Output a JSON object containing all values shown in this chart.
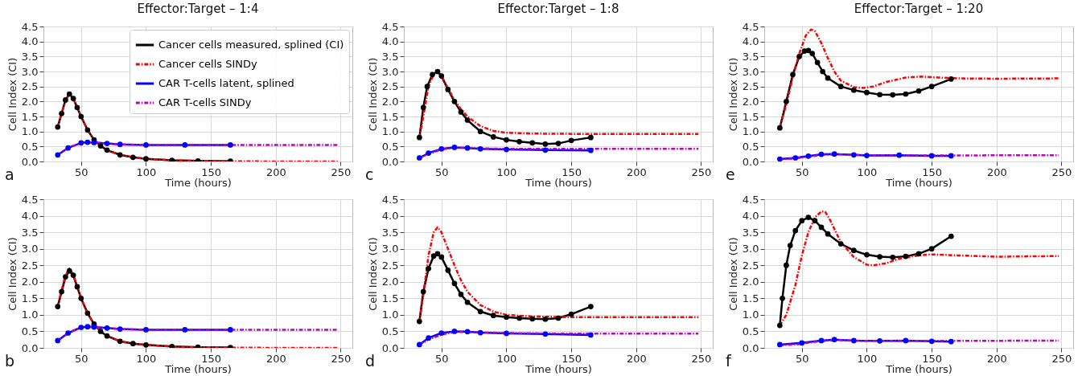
{
  "chart_data": [
    {
      "type": "line",
      "title": "Effector:Target – 1:4",
      "xlabel": "Time (hours)",
      "ylabel": "Cell Index (CI)",
      "annotations": [
        "a"
      ],
      "xlim": [
        21,
        259
      ],
      "ylim": [
        0,
        4.5
      ],
      "xticks": [
        50,
        100,
        150,
        200,
        250
      ],
      "yticks": [
        {
          "value": 0,
          "label": "0.0"
        },
        0.5,
        {
          "value": 1,
          "label": "1.0"
        },
        1.5,
        {
          "value": 2,
          "label": "2.0"
        },
        2.5,
        {
          "value": 3,
          "label": "3.0"
        },
        3.5,
        {
          "value": 4,
          "label": "4.0"
        },
        4.5
      ],
      "grid": true,
      "legend": "top right",
      "series": [
        {
          "name": "Cancer cells measured, splined (CI)",
          "color": "#000000",
          "line_style": "solid",
          "marker": "circle",
          "x": [
            32,
            35,
            38,
            41,
            44,
            47,
            50,
            55,
            60,
            65,
            70,
            80,
            90,
            100,
            120,
            140,
            165
          ],
          "values": [
            1.15,
            1.6,
            2.05,
            2.25,
            2.1,
            1.8,
            1.5,
            1.05,
            0.72,
            0.52,
            0.38,
            0.22,
            0.14,
            0.09,
            0.04,
            0.02,
            0.01
          ]
        },
        {
          "name": "Cancer cells SINDy",
          "color": "#ff0000",
          "line_style": "dashed",
          "x": [
            32,
            35,
            38,
            41,
            44,
            47,
            50,
            55,
            60,
            65,
            70,
            80,
            90,
            100,
            120,
            140,
            165,
            200,
            248
          ],
          "values": [
            1.15,
            1.6,
            2.05,
            2.25,
            2.1,
            1.8,
            1.5,
            1.05,
            0.72,
            0.52,
            0.38,
            0.22,
            0.14,
            0.09,
            0.04,
            0.02,
            0.01,
            0,
            0
          ]
        },
        {
          "name": "CAR T-cells latent, splined",
          "color": "#0000ff",
          "line_style": "solid",
          "marker": "circle",
          "x": [
            32,
            40,
            50,
            55,
            60,
            70,
            80,
            100,
            130,
            165
          ],
          "values": [
            0.22,
            0.45,
            0.62,
            0.64,
            0.63,
            0.6,
            0.57,
            0.55,
            0.55,
            0.55
          ]
        },
        {
          "name": "CAR T-cells SINDy",
          "color": "#bf00bf",
          "line_style": "dashed",
          "x": [
            32,
            40,
            50,
            55,
            60,
            70,
            80,
            100,
            130,
            165,
            200,
            248
          ],
          "values": [
            0.22,
            0.45,
            0.62,
            0.64,
            0.63,
            0.6,
            0.57,
            0.55,
            0.55,
            0.55,
            0.55,
            0.55
          ]
        }
      ]
    },
    {
      "type": "line",
      "title": "Effector:Target – 1:8",
      "xlabel": "Time (hours)",
      "ylabel": "Cell Index (CI)",
      "annotations": [
        "c"
      ],
      "xlim": [
        21,
        259
      ],
      "ylim": [
        0,
        4.5
      ],
      "xticks": [
        50,
        100,
        150,
        200,
        250
      ],
      "yticks": [
        {
          "value": 0,
          "label": "0.0"
        },
        0.5,
        {
          "value": 1,
          "label": "1.0"
        },
        1.5,
        {
          "value": 2,
          "label": "2.0"
        },
        2.5,
        {
          "value": 3,
          "label": "3.0"
        },
        3.5,
        {
          "value": 4,
          "label": "4.0"
        },
        4.5
      ],
      "grid": true,
      "series": [
        {
          "color": "#000000",
          "line_style": "solid",
          "marker": "circle",
          "x": [
            33,
            36,
            39,
            43,
            47,
            50,
            55,
            60,
            65,
            70,
            80,
            90,
            100,
            110,
            120,
            130,
            140,
            150,
            165
          ],
          "values": [
            0.8,
            1.8,
            2.5,
            2.9,
            3.0,
            2.85,
            2.4,
            2.0,
            1.65,
            1.38,
            1.0,
            0.82,
            0.72,
            0.66,
            0.62,
            0.58,
            0.6,
            0.7,
            0.8
          ]
        },
        {
          "color": "#ff0000",
          "line_style": "dashed",
          "x": [
            33,
            36,
            40,
            44,
            47,
            50,
            55,
            60,
            65,
            70,
            80,
            90,
            100,
            120,
            150,
            200,
            248
          ],
          "values": [
            0.8,
            1.5,
            2.5,
            2.9,
            2.97,
            2.85,
            2.45,
            2.05,
            1.75,
            1.5,
            1.18,
            1.02,
            0.96,
            0.93,
            0.92,
            0.92,
            0.92
          ]
        },
        {
          "color": "#0000ff",
          "line_style": "solid",
          "marker": "circle",
          "x": [
            33,
            40,
            50,
            60,
            70,
            80,
            100,
            130,
            165
          ],
          "values": [
            0.12,
            0.28,
            0.42,
            0.47,
            0.45,
            0.42,
            0.4,
            0.38,
            0.37
          ]
        },
        {
          "color": "#bf00bf",
          "line_style": "dashed",
          "x": [
            33,
            40,
            50,
            60,
            70,
            100,
            150,
            248
          ],
          "values": [
            0.12,
            0.25,
            0.4,
            0.46,
            0.45,
            0.42,
            0.42,
            0.42
          ]
        }
      ]
    },
    {
      "type": "line",
      "title": "Effector:Target – 1:20",
      "xlabel": "Time (hours)",
      "ylabel": "Cell Index (CI)",
      "annotations": [
        "e"
      ],
      "xlim": [
        21,
        259
      ],
      "ylim": [
        0,
        4.5
      ],
      "xticks": [
        50,
        100,
        150,
        200,
        250
      ],
      "yticks": [
        {
          "value": 0,
          "label": "0.0"
        },
        0.5,
        {
          "value": 1,
          "label": "1.0"
        },
        1.5,
        {
          "value": 2,
          "label": "2.0"
        },
        2.5,
        {
          "value": 3,
          "label": "3.0"
        },
        3.5,
        {
          "value": 4,
          "label": "4.0"
        },
        4.5
      ],
      "grid": true,
      "series": [
        {
          "color": "#000000",
          "line_style": "solid",
          "marker": "circle",
          "x": [
            33,
            38,
            43,
            48,
            52,
            55,
            58,
            62,
            66,
            70,
            80,
            90,
            100,
            110,
            120,
            130,
            140,
            150,
            165
          ],
          "values": [
            1.12,
            2.0,
            2.9,
            3.5,
            3.68,
            3.7,
            3.6,
            3.3,
            3.0,
            2.78,
            2.5,
            2.38,
            2.3,
            2.23,
            2.22,
            2.25,
            2.35,
            2.5,
            2.75
          ]
        },
        {
          "color": "#ff0000",
          "line_style": "dashed",
          "x": [
            33,
            38,
            43,
            48,
            53,
            57,
            60,
            65,
            70,
            75,
            80,
            90,
            97,
            105,
            115,
            130,
            142,
            155,
            170,
            200,
            248
          ],
          "values": [
            1.15,
            1.9,
            2.8,
            3.6,
            4.2,
            4.4,
            4.35,
            3.95,
            3.45,
            3.0,
            2.7,
            2.48,
            2.45,
            2.5,
            2.65,
            2.8,
            2.83,
            2.8,
            2.77,
            2.76,
            2.77
          ]
        },
        {
          "color": "#0000ff",
          "line_style": "solid",
          "marker": "circle",
          "x": [
            33,
            45,
            55,
            65,
            75,
            90,
            100,
            125,
            150,
            165
          ],
          "values": [
            0.08,
            0.12,
            0.18,
            0.24,
            0.25,
            0.22,
            0.2,
            0.21,
            0.19,
            0.19
          ]
        },
        {
          "color": "#bf00bf",
          "line_style": "dashed",
          "x": [
            33,
            45,
            55,
            65,
            75,
            90,
            110,
            150,
            248
          ],
          "values": [
            0.07,
            0.1,
            0.16,
            0.22,
            0.24,
            0.22,
            0.2,
            0.2,
            0.21
          ]
        }
      ]
    },
    {
      "type": "line",
      "xlabel": "Time (hours)",
      "ylabel": "Cell Index (CI)",
      "annotations": [
        "b"
      ],
      "xlim": [
        21,
        259
      ],
      "ylim": [
        0,
        4.5
      ],
      "xticks": [
        50,
        100,
        150,
        200,
        250
      ],
      "yticks": [
        {
          "value": 0,
          "label": "0.0"
        },
        0.5,
        {
          "value": 1,
          "label": "1.0"
        },
        1.5,
        {
          "value": 2,
          "label": "2.0"
        },
        2.5,
        {
          "value": 3,
          "label": "3.0"
        },
        3.5,
        {
          "value": 4,
          "label": "4.0"
        },
        4.5
      ],
      "grid": true,
      "series": [
        {
          "color": "#000000",
          "line_style": "solid",
          "marker": "circle",
          "x": [
            32,
            35,
            38,
            41,
            44,
            47,
            50,
            55,
            60,
            65,
            70,
            80,
            90,
            100,
            120,
            140,
            165
          ],
          "values": [
            1.25,
            1.7,
            2.15,
            2.33,
            2.2,
            1.85,
            1.5,
            1.05,
            0.72,
            0.5,
            0.36,
            0.2,
            0.13,
            0.09,
            0.04,
            0.02,
            0.01
          ]
        },
        {
          "color": "#ff0000",
          "line_style": "dashed",
          "x": [
            32,
            35,
            38,
            41,
            44,
            47,
            50,
            55,
            60,
            65,
            70,
            80,
            90,
            100,
            120,
            140,
            165,
            200,
            248
          ],
          "values": [
            1.25,
            1.75,
            2.2,
            2.4,
            2.22,
            1.85,
            1.5,
            1.05,
            0.72,
            0.5,
            0.36,
            0.2,
            0.13,
            0.09,
            0.04,
            0.02,
            0.01,
            0,
            0
          ]
        },
        {
          "color": "#0000ff",
          "line_style": "solid",
          "marker": "circle",
          "x": [
            32,
            40,
            50,
            55,
            60,
            70,
            80,
            100,
            130,
            165
          ],
          "values": [
            0.22,
            0.45,
            0.62,
            0.64,
            0.63,
            0.6,
            0.57,
            0.55,
            0.55,
            0.55
          ]
        },
        {
          "color": "#bf00bf",
          "line_style": "dashed",
          "x": [
            32,
            40,
            50,
            55,
            60,
            70,
            80,
            100,
            130,
            165,
            200,
            248
          ],
          "values": [
            0.22,
            0.45,
            0.62,
            0.64,
            0.63,
            0.6,
            0.57,
            0.55,
            0.55,
            0.55,
            0.55,
            0.55
          ]
        }
      ]
    },
    {
      "type": "line",
      "xlabel": "Time (hours)",
      "ylabel": "Cell Index (CI)",
      "annotations": [
        "d"
      ],
      "xlim": [
        21,
        259
      ],
      "ylim": [
        0,
        4.5
      ],
      "xticks": [
        50,
        100,
        150,
        200,
        250
      ],
      "yticks": [
        {
          "value": 0,
          "label": "0.0"
        },
        0.5,
        {
          "value": 1,
          "label": "1.0"
        },
        1.5,
        {
          "value": 2,
          "label": "2.0"
        },
        2.5,
        {
          "value": 3,
          "label": "3.0"
        },
        3.5,
        {
          "value": 4,
          "label": "4.0"
        },
        4.5
      ],
      "grid": true,
      "series": [
        {
          "color": "#000000",
          "line_style": "solid",
          "marker": "circle",
          "x": [
            33,
            36,
            40,
            44,
            47,
            50,
            55,
            60,
            65,
            70,
            80,
            90,
            100,
            110,
            120,
            130,
            140,
            150,
            165
          ],
          "values": [
            0.8,
            1.7,
            2.4,
            2.78,
            2.85,
            2.75,
            2.35,
            1.95,
            1.62,
            1.38,
            1.1,
            0.98,
            0.93,
            0.9,
            0.88,
            0.87,
            0.9,
            1.02,
            1.25
          ]
        },
        {
          "color": "#ff0000",
          "line_style": "dashed",
          "x": [
            33,
            36,
            40,
            44,
            47,
            50,
            55,
            60,
            65,
            70,
            80,
            90,
            100,
            120,
            150,
            200,
            248
          ],
          "values": [
            0.8,
            1.6,
            2.8,
            3.5,
            3.65,
            3.5,
            3.0,
            2.5,
            2.05,
            1.7,
            1.3,
            1.1,
            1.0,
            0.95,
            0.93,
            0.93,
            0.93
          ]
        },
        {
          "color": "#0000ff",
          "line_style": "solid",
          "marker": "circle",
          "x": [
            33,
            40,
            50,
            60,
            70,
            80,
            100,
            130,
            165
          ],
          "values": [
            0.1,
            0.3,
            0.45,
            0.5,
            0.49,
            0.46,
            0.44,
            0.42,
            0.39
          ]
        },
        {
          "color": "#bf00bf",
          "line_style": "dashed",
          "x": [
            33,
            40,
            50,
            60,
            70,
            100,
            150,
            248
          ],
          "values": [
            0.1,
            0.25,
            0.4,
            0.48,
            0.48,
            0.45,
            0.43,
            0.43
          ]
        }
      ]
    },
    {
      "type": "line",
      "xlabel": "Time (hours)",
      "ylabel": "Cell Index (CI)",
      "annotations": [
        "f"
      ],
      "xlim": [
        21,
        259
      ],
      "ylim": [
        0,
        4.5
      ],
      "xticks": [
        50,
        100,
        150,
        200,
        250
      ],
      "yticks": [
        {
          "value": 0,
          "label": "0.0"
        },
        0.5,
        {
          "value": 1,
          "label": "1.0"
        },
        1.5,
        {
          "value": 2,
          "label": "2.0"
        },
        2.5,
        {
          "value": 3,
          "label": "3.0"
        },
        3.5,
        {
          "value": 4,
          "label": "4.0"
        },
        4.5
      ],
      "grid": true,
      "series": [
        {
          "color": "#000000",
          "line_style": "solid",
          "marker": "circle",
          "x": [
            33,
            35,
            38,
            41,
            45,
            50,
            55,
            60,
            65,
            70,
            80,
            90,
            100,
            110,
            120,
            130,
            140,
            150,
            165
          ],
          "values": [
            0.68,
            1.5,
            2.5,
            3.1,
            3.55,
            3.85,
            3.95,
            3.85,
            3.65,
            3.45,
            3.15,
            2.95,
            2.82,
            2.76,
            2.74,
            2.77,
            2.85,
            3.0,
            3.38
          ]
        },
        {
          "color": "#ff0000",
          "line_style": "dashed",
          "x": [
            33,
            38,
            45,
            50,
            55,
            60,
            65,
            68,
            72,
            80,
            90,
            100,
            105,
            115,
            125,
            140,
            150,
            170,
            200,
            248
          ],
          "values": [
            0.68,
            1.0,
            1.9,
            2.8,
            3.5,
            3.95,
            4.13,
            4.12,
            3.85,
            3.2,
            2.75,
            2.52,
            2.5,
            2.56,
            2.7,
            2.8,
            2.83,
            2.8,
            2.76,
            2.78
          ]
        },
        {
          "color": "#0000ff",
          "line_style": "solid",
          "marker": "circle",
          "x": [
            33,
            50,
            65,
            75,
            90,
            110,
            130,
            150,
            165
          ],
          "values": [
            0.1,
            0.15,
            0.22,
            0.25,
            0.22,
            0.21,
            0.22,
            0.2,
            0.19
          ]
        },
        {
          "color": "#bf00bf",
          "line_style": "dashed",
          "x": [
            33,
            45,
            60,
            75,
            100,
            150,
            248
          ],
          "values": [
            0.08,
            0.1,
            0.18,
            0.24,
            0.21,
            0.21,
            0.22
          ]
        }
      ]
    }
  ]
}
